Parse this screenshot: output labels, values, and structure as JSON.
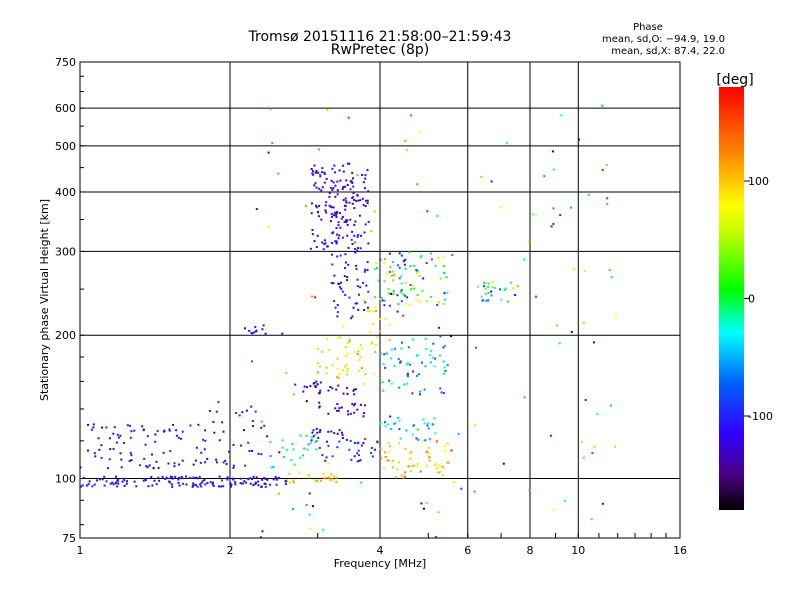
{
  "chart_data": {
    "type": "scatter",
    "title": "Tromsø 20151116 21:58:00–21:59:43",
    "subtitle": "RwPretec (8p)",
    "xlabel": "Frequency [MHz]",
    "ylabel": "Stationary phase Virtual Height [km]",
    "x_scale": "log",
    "y_scale": "log",
    "xlim": [
      1,
      16
    ],
    "ylim": [
      75,
      750
    ],
    "x_ticks": [
      1,
      2,
      4,
      6,
      8,
      10,
      16
    ],
    "x_tick_labels": [
      "1",
      "2",
      "4",
      "6",
      "8",
      "10",
      "16"
    ],
    "y_ticks": [
      75,
      100,
      200,
      300,
      400,
      500,
      600,
      750
    ],
    "y_tick_labels": [
      "75",
      "100",
      "200",
      "300",
      "400",
      "500",
      "600",
      "750"
    ],
    "grid": true,
    "stats": {
      "heading": "Phase",
      "line_o": "mean, sd,O: −94.9, 19.0",
      "line_x": "mean, sd,X:  87.4, 22.0"
    },
    "colorbar": {
      "label": "[deg]",
      "range": [
        -180,
        180
      ],
      "ticks": [
        100,
        0,
        -100
      ],
      "tick_labels": [
        "100",
        "0",
        "-100"
      ],
      "colormap": "rainbow"
    },
    "clusters": [
      {
        "f": [
          1.0,
          2.6
        ],
        "h": [
          96,
          101
        ],
        "phase": [
          -130,
          -95
        ],
        "n": 140
      },
      {
        "f": [
          2.6,
          3.3
        ],
        "h": [
          98,
          103
        ],
        "phase": [
          80,
          120
        ],
        "n": 25
      },
      {
        "f": [
          1.0,
          2.4
        ],
        "h": [
          105,
          130
        ],
        "phase": [
          -130,
          -90
        ],
        "n": 110
      },
      {
        "f": [
          2.4,
          3.0
        ],
        "h": [
          105,
          125
        ],
        "phase": [
          -60,
          20
        ],
        "n": 25
      },
      {
        "f": [
          1.8,
          2.3
        ],
        "h": [
          130,
          145
        ],
        "phase": [
          -120,
          -90
        ],
        "n": 12
      },
      {
        "f": [
          2.1,
          2.6
        ],
        "h": [
          200,
          212
        ],
        "phase": [
          -120,
          -90
        ],
        "n": 12
      },
      {
        "f": [
          2.9,
          3.8
        ],
        "h": [
          300,
          460
        ],
        "phase": [
          -140,
          -100
        ],
        "n": 170
      },
      {
        "f": [
          3.2,
          3.8
        ],
        "h": [
          215,
          300
        ],
        "phase": [
          -130,
          -90
        ],
        "n": 50
      },
      {
        "f": [
          2.8,
          3.6
        ],
        "h": [
          150,
          160
        ],
        "phase": [
          -140,
          -110
        ],
        "n": 28
      },
      {
        "f": [
          3.0,
          3.8
        ],
        "h": [
          135,
          145
        ],
        "phase": [
          -140,
          -110
        ],
        "n": 22
      },
      {
        "f": [
          2.9,
          3.5
        ],
        "h": [
          120,
          128
        ],
        "phase": [
          -140,
          -110
        ],
        "n": 18
      },
      {
        "f": [
          3.0,
          4.0
        ],
        "h": [
          108,
          122
        ],
        "phase": [
          -110,
          -80
        ],
        "n": 30
      },
      {
        "f": [
          3.0,
          4.0
        ],
        "h": [
          160,
          200
        ],
        "phase": [
          40,
          130
        ],
        "n": 45
      },
      {
        "f": [
          3.6,
          4.2
        ],
        "h": [
          200,
          240
        ],
        "phase": [
          60,
          120
        ],
        "n": 15
      },
      {
        "f": [
          3.9,
          5.5
        ],
        "h": [
          230,
          300
        ],
        "phase": [
          -120,
          120
        ],
        "n": 90
      },
      {
        "f": [
          4.0,
          5.5
        ],
        "h": [
          150,
          200
        ],
        "phase": [
          -100,
          0
        ],
        "n": 60
      },
      {
        "f": [
          4.0,
          5.5
        ],
        "h": [
          100,
          120
        ],
        "phase": [
          40,
          140
        ],
        "n": 55
      },
      {
        "f": [
          4.0,
          5.2
        ],
        "h": [
          120,
          135
        ],
        "phase": [
          -90,
          0
        ],
        "n": 30
      },
      {
        "f": [
          6.2,
          7.6
        ],
        "h": [
          235,
          260
        ],
        "phase": [
          -120,
          130
        ],
        "n": 30
      },
      {
        "f": [
          2.2,
          12.0
        ],
        "h": [
          75,
          620
        ],
        "phase": [
          -180,
          180
        ],
        "n": 120
      }
    ]
  }
}
